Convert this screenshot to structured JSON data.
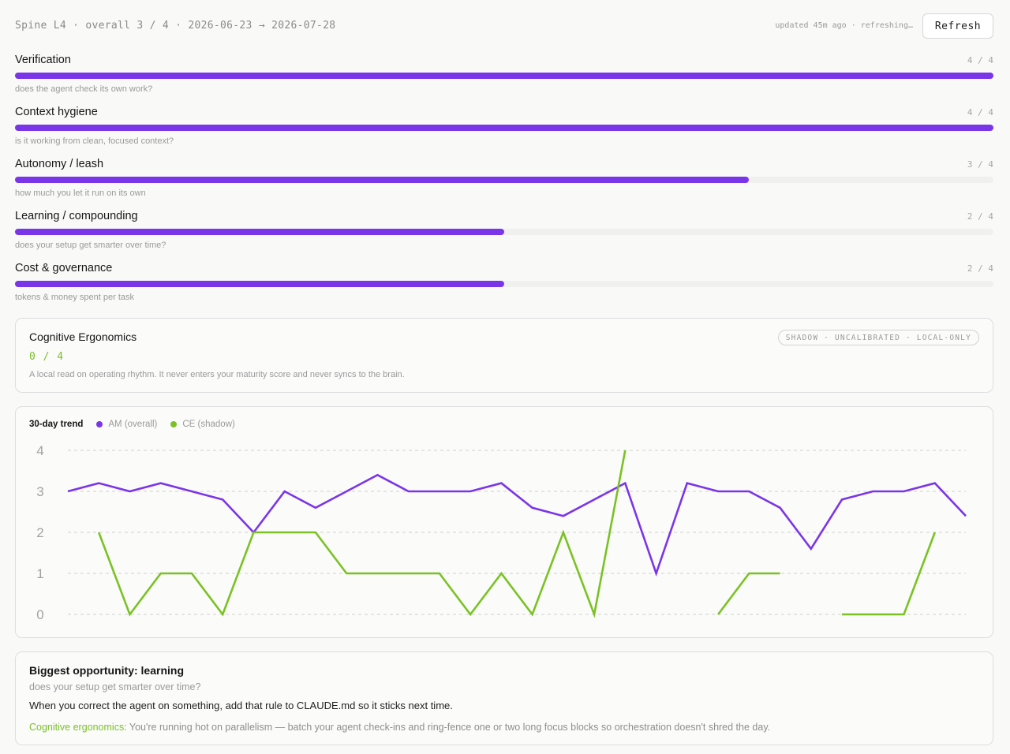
{
  "header": {
    "breadcrumb": "Spine L4 · overall 3 / 4 · 2026-06-23 → 2026-07-28",
    "status": "updated 45m ago · refreshing…",
    "refresh_label": "Refresh"
  },
  "dimensions": [
    {
      "title": "Verification",
      "score_text": "4 / 4",
      "score": 4,
      "max": 4,
      "description": "does the agent check its own work?"
    },
    {
      "title": "Context hygiene",
      "score_text": "4 / 4",
      "score": 4,
      "max": 4,
      "description": "is it working from clean, focused context?"
    },
    {
      "title": "Autonomy / leash",
      "score_text": "3 / 4",
      "score": 3,
      "max": 4,
      "description": "how much you let it run on its own"
    },
    {
      "title": "Learning / compounding",
      "score_text": "2 / 4",
      "score": 2,
      "max": 4,
      "description": "does your setup get smarter over time?"
    },
    {
      "title": "Cost & governance",
      "score_text": "2 / 4",
      "score": 2,
      "max": 4,
      "description": "tokens & money spent per task"
    }
  ],
  "cognitive_ergonomics": {
    "title": "Cognitive Ergonomics",
    "score_text": "0 / 4",
    "tag": "SHADOW · UNCALIBRATED · LOCAL-ONLY",
    "description": "A local read on operating rhythm. It never enters your maturity score and never syncs to the brain."
  },
  "trend": {
    "title": "30-day trend",
    "legend_am": "AM (overall)",
    "legend_ce": "CE (shadow)"
  },
  "chart_data": {
    "type": "line",
    "ylim": [
      0,
      4
    ],
    "yticks": [
      "0",
      "1",
      "2",
      "3",
      "4"
    ],
    "grid": true,
    "legend_position": "top-left",
    "x": [
      1,
      2,
      3,
      4,
      5,
      6,
      7,
      8,
      9,
      10,
      11,
      12,
      13,
      14,
      15,
      16,
      17,
      18,
      19,
      20,
      21,
      22,
      23,
      24,
      25,
      26,
      27,
      28,
      29,
      30
    ],
    "series": [
      {
        "name": "AM (overall)",
        "color": "#7b35e8",
        "values": [
          3.0,
          3.2,
          3.0,
          3.2,
          3.0,
          2.8,
          2.0,
          3.0,
          2.6,
          3.0,
          3.4,
          3.0,
          3.0,
          3.0,
          3.2,
          2.6,
          2.4,
          2.8,
          3.2,
          1.0,
          3.2,
          3.0,
          3.0,
          2.6,
          1.6,
          2.8,
          3.0,
          3.0,
          3.2,
          2.4
        ]
      },
      {
        "name": "CE (shadow)",
        "color": "#7ac224",
        "values": [
          null,
          2,
          0,
          1,
          1,
          0,
          2,
          2,
          2,
          1,
          1,
          1,
          1,
          0,
          1,
          0,
          2,
          0,
          4,
          null,
          null,
          0,
          1,
          1,
          null,
          0,
          0,
          0,
          2,
          null
        ]
      }
    ]
  },
  "opportunity": {
    "title": "Biggest opportunity: learning",
    "subtitle": "does your setup get smarter over time?",
    "body": "When you correct the agent on something, add that rule to CLAUDE.md so it sticks next time.",
    "ce_label": "Cognitive ergonomics:",
    "ce_text": " You're running hot on parallelism — batch your agent check-ins and ring-fence one or two long focus blocks so orchestration doesn't shred the day."
  },
  "colors": {
    "accent": "#7b35e8",
    "shadow": "#7ac224"
  }
}
